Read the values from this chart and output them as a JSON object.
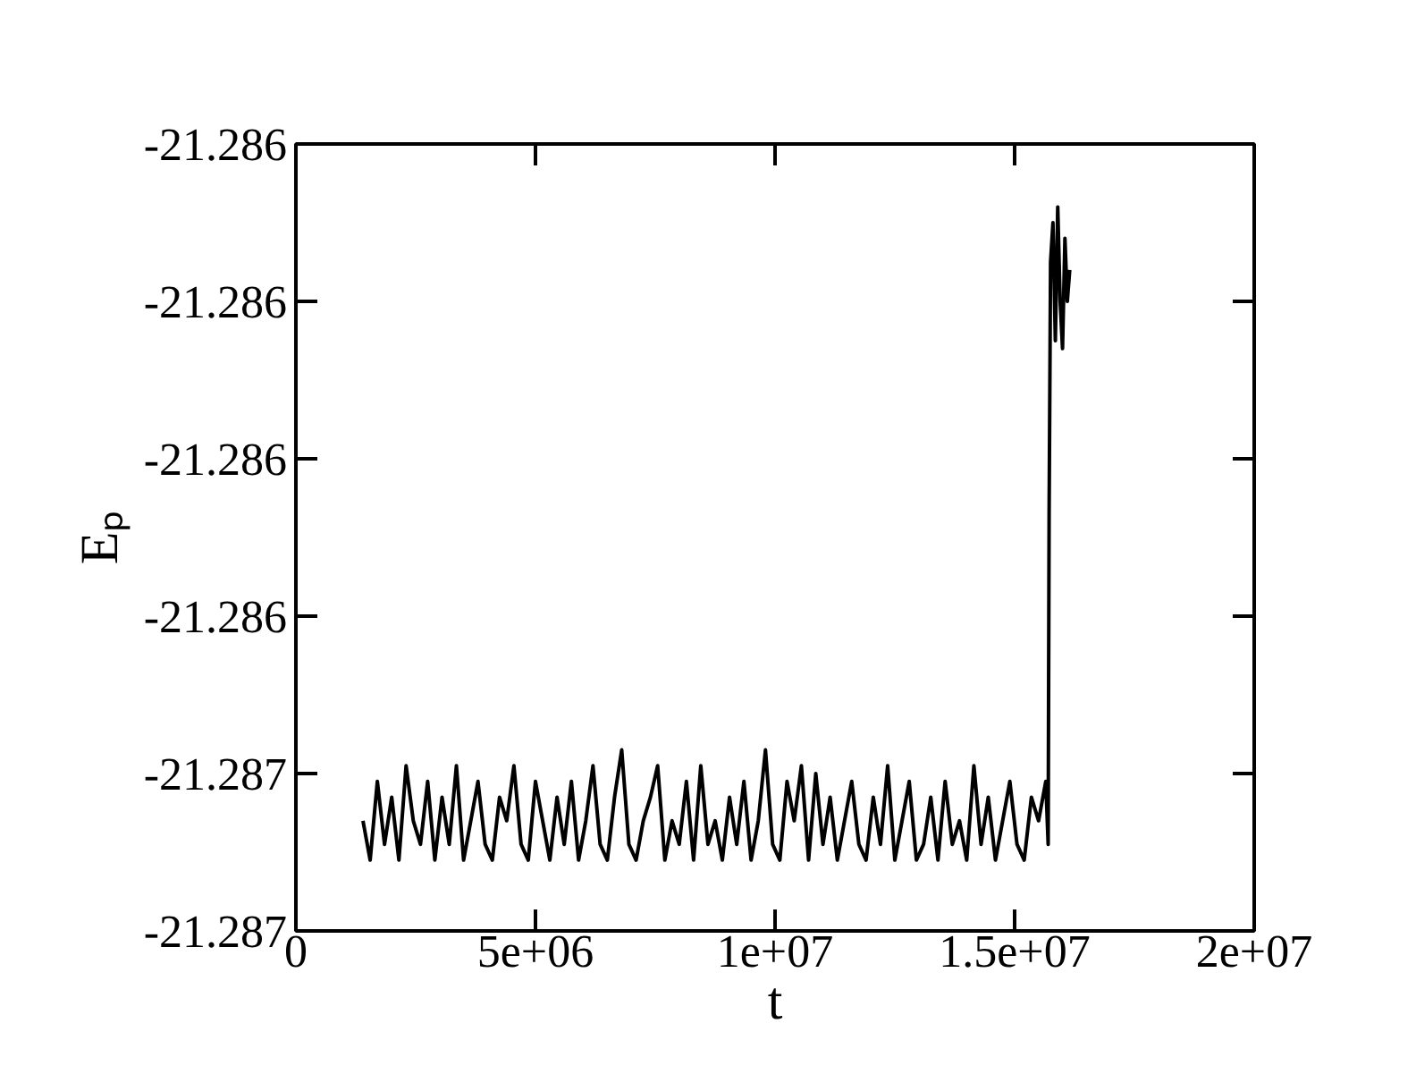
{
  "chart_data": {
    "type": "line",
    "xlabel": "t",
    "ylabel": "Eₚ",
    "xlim": [
      0,
      20000000
    ],
    "xticks": [
      0,
      {
        "value": 5000000,
        "label": "5e+06"
      },
      {
        "value": 10000000,
        "label": "1e+07"
      },
      {
        "value": 15000000,
        "label": "1.5e+07"
      },
      {
        "value": 20000000,
        "label": "2e+07"
      }
    ],
    "ylim": [
      -21.2868,
      -21.2858
    ],
    "yticks": [
      {
        "value": -21.2868,
        "label": "-21.287"
      },
      {
        "value": -21.2866,
        "label": "-21.287"
      },
      {
        "value": -21.2864,
        "label": "-21.286"
      },
      {
        "value": -21.2862,
        "label": "-21.286"
      },
      {
        "value": -21.286,
        "label": "-21.286"
      },
      {
        "value": -21.2858,
        "label": "-21.286"
      }
    ],
    "grid": false,
    "marker": "none",
    "line_style": "solid",
    "series": [
      {
        "color": "#000000",
        "x": [
          1400000,
          1550000,
          1700000,
          1850000,
          2000000,
          2150000,
          2300000,
          2450000,
          2600000,
          2750000,
          2900000,
          3050000,
          3200000,
          3350000,
          3500000,
          3650000,
          3800000,
          3950000,
          4100000,
          4250000,
          4400000,
          4550000,
          4700000,
          4850000,
          5000000,
          5150000,
          5300000,
          5450000,
          5600000,
          5750000,
          5900000,
          6050000,
          6200000,
          6350000,
          6500000,
          6650000,
          6800000,
          6950000,
          7100000,
          7250000,
          7400000,
          7550000,
          7700000,
          7850000,
          8000000,
          8150000,
          8300000,
          8450000,
          8600000,
          8750000,
          8900000,
          9050000,
          9200000,
          9350000,
          9500000,
          9650000,
          9800000,
          9950000,
          10100000,
          10250000,
          10400000,
          10550000,
          10700000,
          10850000,
          11000000,
          11150000,
          11300000,
          11450000,
          11600000,
          11750000,
          11900000,
          12050000,
          12200000,
          12350000,
          12500000,
          12650000,
          12800000,
          12950000,
          13100000,
          13250000,
          13400000,
          13550000,
          13700000,
          13850000,
          14000000,
          14150000,
          14300000,
          14450000,
          14600000,
          14750000,
          14900000,
          15050000,
          15200000,
          15350000,
          15500000,
          15650000,
          15700000,
          15720000,
          15750000,
          15800000,
          15850000,
          15900000,
          15950000,
          16000000,
          16050000,
          16100000,
          16150000
        ],
        "values": [
          -21.28666,
          -21.28671,
          -21.28661,
          -21.28669,
          -21.28663,
          -21.28671,
          -21.28659,
          -21.28666,
          -21.28669,
          -21.28661,
          -21.28671,
          -21.28663,
          -21.28669,
          -21.28659,
          -21.28671,
          -21.28666,
          -21.28661,
          -21.28669,
          -21.28671,
          -21.28663,
          -21.28666,
          -21.28659,
          -21.28669,
          -21.28671,
          -21.28661,
          -21.28666,
          -21.28671,
          -21.28663,
          -21.28669,
          -21.28661,
          -21.28671,
          -21.28666,
          -21.28659,
          -21.28669,
          -21.28671,
          -21.28663,
          -21.28657,
          -21.28669,
          -21.28671,
          -21.28666,
          -21.28663,
          -21.28659,
          -21.28671,
          -21.28666,
          -21.28669,
          -21.28661,
          -21.28671,
          -21.28659,
          -21.28669,
          -21.28666,
          -21.28671,
          -21.28663,
          -21.28669,
          -21.28661,
          -21.28671,
          -21.28666,
          -21.28657,
          -21.28669,
          -21.28671,
          -21.28661,
          -21.28666,
          -21.28659,
          -21.28671,
          -21.2866,
          -21.28669,
          -21.28663,
          -21.28671,
          -21.28666,
          -21.28661,
          -21.28669,
          -21.28671,
          -21.28663,
          -21.28669,
          -21.28659,
          -21.28671,
          -21.28666,
          -21.28661,
          -21.28671,
          -21.28669,
          -21.28663,
          -21.28671,
          -21.28661,
          -21.28669,
          -21.28666,
          -21.28671,
          -21.28659,
          -21.28669,
          -21.28663,
          -21.28671,
          -21.28666,
          -21.28661,
          -21.28669,
          -21.28671,
          -21.28663,
          -21.28666,
          -21.28661,
          -21.28669,
          -21.28627,
          -21.28595,
          -21.2859,
          -21.28605,
          -21.28588,
          -21.286,
          -21.28606,
          -21.28592,
          -21.286,
          -21.28596
        ]
      }
    ]
  }
}
